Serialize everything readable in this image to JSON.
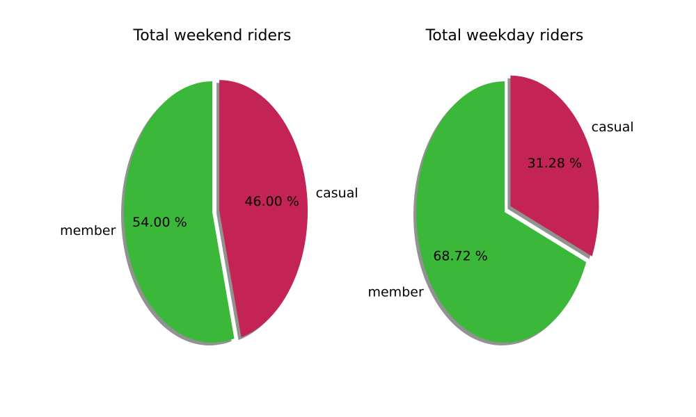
{
  "chart_data": [
    {
      "type": "pie",
      "title": "Total weekend riders",
      "slices": [
        {
          "label": "member",
          "value": 54.0,
          "pct_label": "54.00 %",
          "color": "#3bb83a",
          "exploded": false
        },
        {
          "label": "casual",
          "value": 46.0,
          "pct_label": "46.00 %",
          "color": "#c42355",
          "exploded": true
        }
      ],
      "shadow": true,
      "start": "top",
      "direction": "counterclockwise"
    },
    {
      "type": "pie",
      "title": "Total weekday riders",
      "slices": [
        {
          "label": "member",
          "value": 68.72,
          "pct_label": "68.72 %",
          "color": "#3bb83a",
          "exploded": false
        },
        {
          "label": "casual",
          "value": 31.28,
          "pct_label": "31.28 %",
          "color": "#c42355",
          "exploded": true
        }
      ],
      "shadow": true,
      "start": "top",
      "direction": "counterclockwise"
    }
  ]
}
